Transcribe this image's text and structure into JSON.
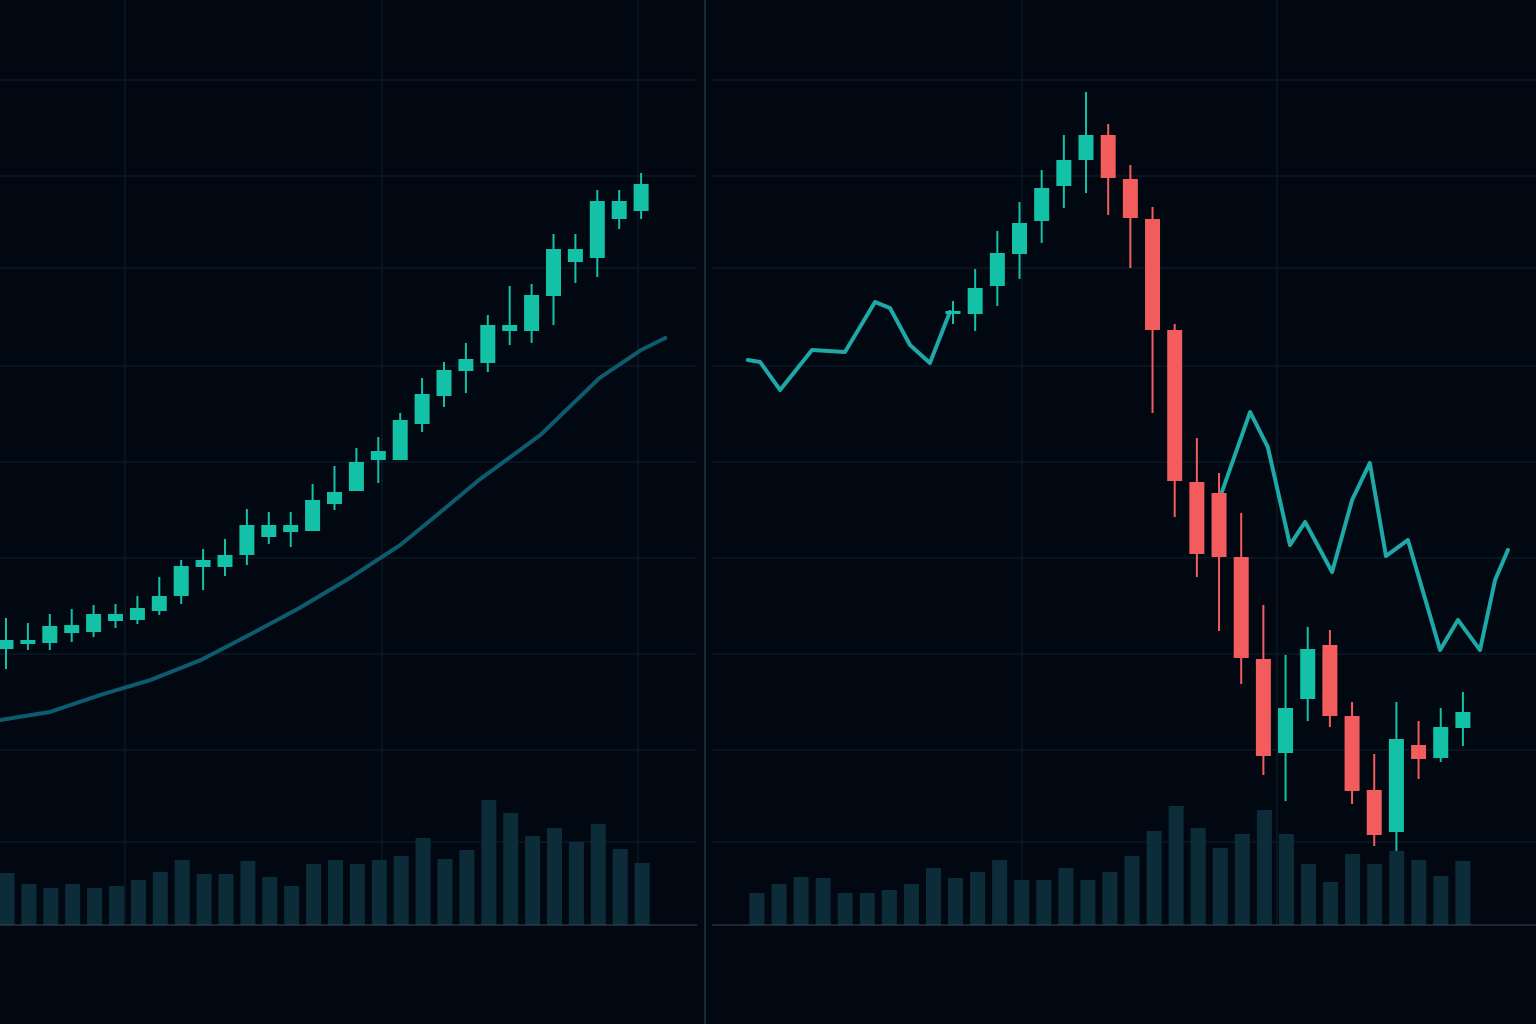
{
  "colors": {
    "background": "#020812",
    "grid": "#0b1824",
    "up": "#13c2a6",
    "down": "#f25c5c",
    "volume": "#0d2c3a",
    "moving_average_left": "#0e5a6e",
    "line_right": "#1fa8a8",
    "divider": "#1c3446",
    "baseline": "#3a4a58"
  },
  "chart_data": [
    {
      "type": "candlestick",
      "panel": "left",
      "grid": true,
      "ylim": [
        0,
        100
      ],
      "candle_format": [
        "open",
        "high",
        "low",
        "close"
      ],
      "candles": [
        [
          35.1,
          38.2,
          33.1,
          36.0
        ],
        [
          35.6,
          37.7,
          35.0,
          36.0
        ],
        [
          35.7,
          38.6,
          35.0,
          37.4
        ],
        [
          36.7,
          39.1,
          35.8,
          37.5
        ],
        [
          36.8,
          39.5,
          36.3,
          38.6
        ],
        [
          37.9,
          39.6,
          37.2,
          38.6
        ],
        [
          38.0,
          40.4,
          37.6,
          39.2
        ],
        [
          38.9,
          42.3,
          38.5,
          40.4
        ],
        [
          40.4,
          44.0,
          39.6,
          43.4
        ],
        [
          43.3,
          45.1,
          41.0,
          44.0
        ],
        [
          43.3,
          46.1,
          42.4,
          44.5
        ],
        [
          44.5,
          49.1,
          43.5,
          47.5
        ],
        [
          46.3,
          48.8,
          45.6,
          47.5
        ],
        [
          46.8,
          48.8,
          45.3,
          47.5
        ],
        [
          46.9,
          51.6,
          46.9,
          50.0
        ],
        [
          49.6,
          53.4,
          49.0,
          50.8
        ],
        [
          50.9,
          55.2,
          50.9,
          53.8
        ],
        [
          54.0,
          56.3,
          51.7,
          54.9
        ],
        [
          54.0,
          58.7,
          54.0,
          58.0
        ],
        [
          57.6,
          62.2,
          56.8,
          60.6
        ],
        [
          60.4,
          63.8,
          59.3,
          63.0
        ],
        [
          62.9,
          65.7,
          60.7,
          64.1
        ],
        [
          63.7,
          68.5,
          62.8,
          67.5
        ],
        [
          66.9,
          71.4,
          65.5,
          67.5
        ],
        [
          66.9,
          71.6,
          65.7,
          70.5
        ],
        [
          70.4,
          76.6,
          67.5,
          75.1
        ],
        [
          73.8,
          76.6,
          71.7,
          75.1
        ],
        [
          74.2,
          81.0,
          72.3,
          79.9
        ],
        [
          78.1,
          81.0,
          77.1,
          79.9
        ],
        [
          78.9,
          82.7,
          78.1,
          81.6
        ]
      ],
      "moving_average": [
        [
          -0.27,
          28.0
        ],
        [
          2.0,
          28.8
        ],
        [
          4.3,
          30.5
        ],
        [
          6.6,
          32.0
        ],
        [
          8.9,
          34.0
        ],
        [
          11.1,
          36.5
        ],
        [
          13.4,
          39.2
        ],
        [
          15.7,
          42.2
        ],
        [
          18.0,
          45.5
        ],
        [
          19.4,
          48.0
        ],
        [
          21.6,
          52.0
        ],
        [
          24.4,
          56.5
        ],
        [
          27.1,
          62.2
        ],
        [
          29.0,
          65.0
        ],
        [
          30.1,
          66.2
        ]
      ],
      "volume": [
        52,
        41,
        37,
        41,
        37,
        39,
        45,
        53,
        65,
        51,
        51,
        64,
        48,
        39,
        61,
        65,
        61,
        65,
        69,
        87,
        66,
        75,
        125,
        112,
        89,
        97,
        83,
        101,
        76,
        62
      ]
    },
    {
      "type": "candlestick",
      "panel": "right",
      "grid": true,
      "ylim": [
        0,
        100
      ],
      "candle_format": [
        "open",
        "high",
        "low",
        "close"
      ],
      "candles": [
        [
          68.8,
          69.9,
          67.6,
          68.9
        ],
        [
          68.6,
          73.1,
          66.9,
          71.2
        ],
        [
          71.4,
          76.9,
          69.4,
          74.7
        ],
        [
          74.6,
          79.8,
          72.1,
          77.7
        ],
        [
          77.9,
          83.0,
          75.7,
          81.2
        ],
        [
          81.4,
          86.5,
          79.2,
          84.0
        ],
        [
          84.0,
          90.8,
          80.7,
          86.5
        ],
        [
          86.5,
          87.6,
          78.5,
          82.2
        ],
        [
          82.1,
          83.5,
          73.2,
          78.2
        ],
        [
          78.1,
          79.3,
          58.7,
          67.0
        ],
        [
          67.0,
          67.6,
          48.3,
          51.9
        ],
        [
          51.8,
          56.2,
          42.3,
          44.6
        ],
        [
          50.7,
          52.7,
          36.9,
          44.3
        ],
        [
          44.3,
          48.7,
          31.6,
          34.2
        ],
        [
          34.1,
          39.5,
          22.5,
          24.4
        ],
        [
          24.7,
          34.5,
          19.9,
          29.2
        ],
        [
          30.1,
          37.3,
          27.9,
          35.1
        ],
        [
          35.5,
          37.0,
          27.3,
          28.4
        ],
        [
          28.4,
          29.8,
          19.6,
          20.9
        ],
        [
          21.0,
          24.6,
          15.4,
          16.5
        ],
        [
          16.8,
          29.8,
          14.9,
          26.1
        ],
        [
          25.5,
          27.9,
          22.1,
          24.1
        ],
        [
          24.2,
          29.2,
          23.8,
          27.3
        ],
        [
          27.2,
          30.8,
          25.4,
          28.8
        ]
      ],
      "line_segments": [
        [
          [
            -9.25,
            64.0
          ],
          [
            -8.7,
            63.8
          ],
          [
            -7.8,
            61.0
          ],
          [
            -6.36,
            65.0
          ],
          [
            -4.87,
            64.8
          ],
          [
            -3.52,
            69.8
          ],
          [
            -2.84,
            69.2
          ],
          [
            -1.94,
            65.5
          ],
          [
            -1.04,
            63.7
          ],
          [
            -0.14,
            68.8
          ]
        ],
        [
          [
            12.13,
            50.8
          ],
          [
            13.4,
            58.8
          ],
          [
            14.2,
            55.3
          ],
          [
            15.2,
            45.5
          ],
          [
            15.88,
            47.8
          ],
          [
            17.1,
            42.8
          ],
          [
            18.0,
            50.0
          ],
          [
            18.8,
            53.7
          ],
          [
            19.53,
            44.4
          ],
          [
            20.52,
            46.0
          ],
          [
            21.97,
            35.0
          ],
          [
            22.78,
            38.0
          ],
          [
            23.77,
            35.0
          ],
          [
            24.45,
            42.0
          ],
          [
            25.03,
            45.0
          ]
        ]
      ],
      "volume": [
        32,
        41,
        48,
        47,
        32,
        32,
        35,
        41,
        57,
        47,
        53,
        65,
        45,
        45,
        57,
        45,
        53,
        69,
        94,
        119,
        97,
        77,
        91,
        115,
        91,
        61,
        43,
        71,
        61,
        74,
        65,
        49,
        64
      ]
    }
  ]
}
